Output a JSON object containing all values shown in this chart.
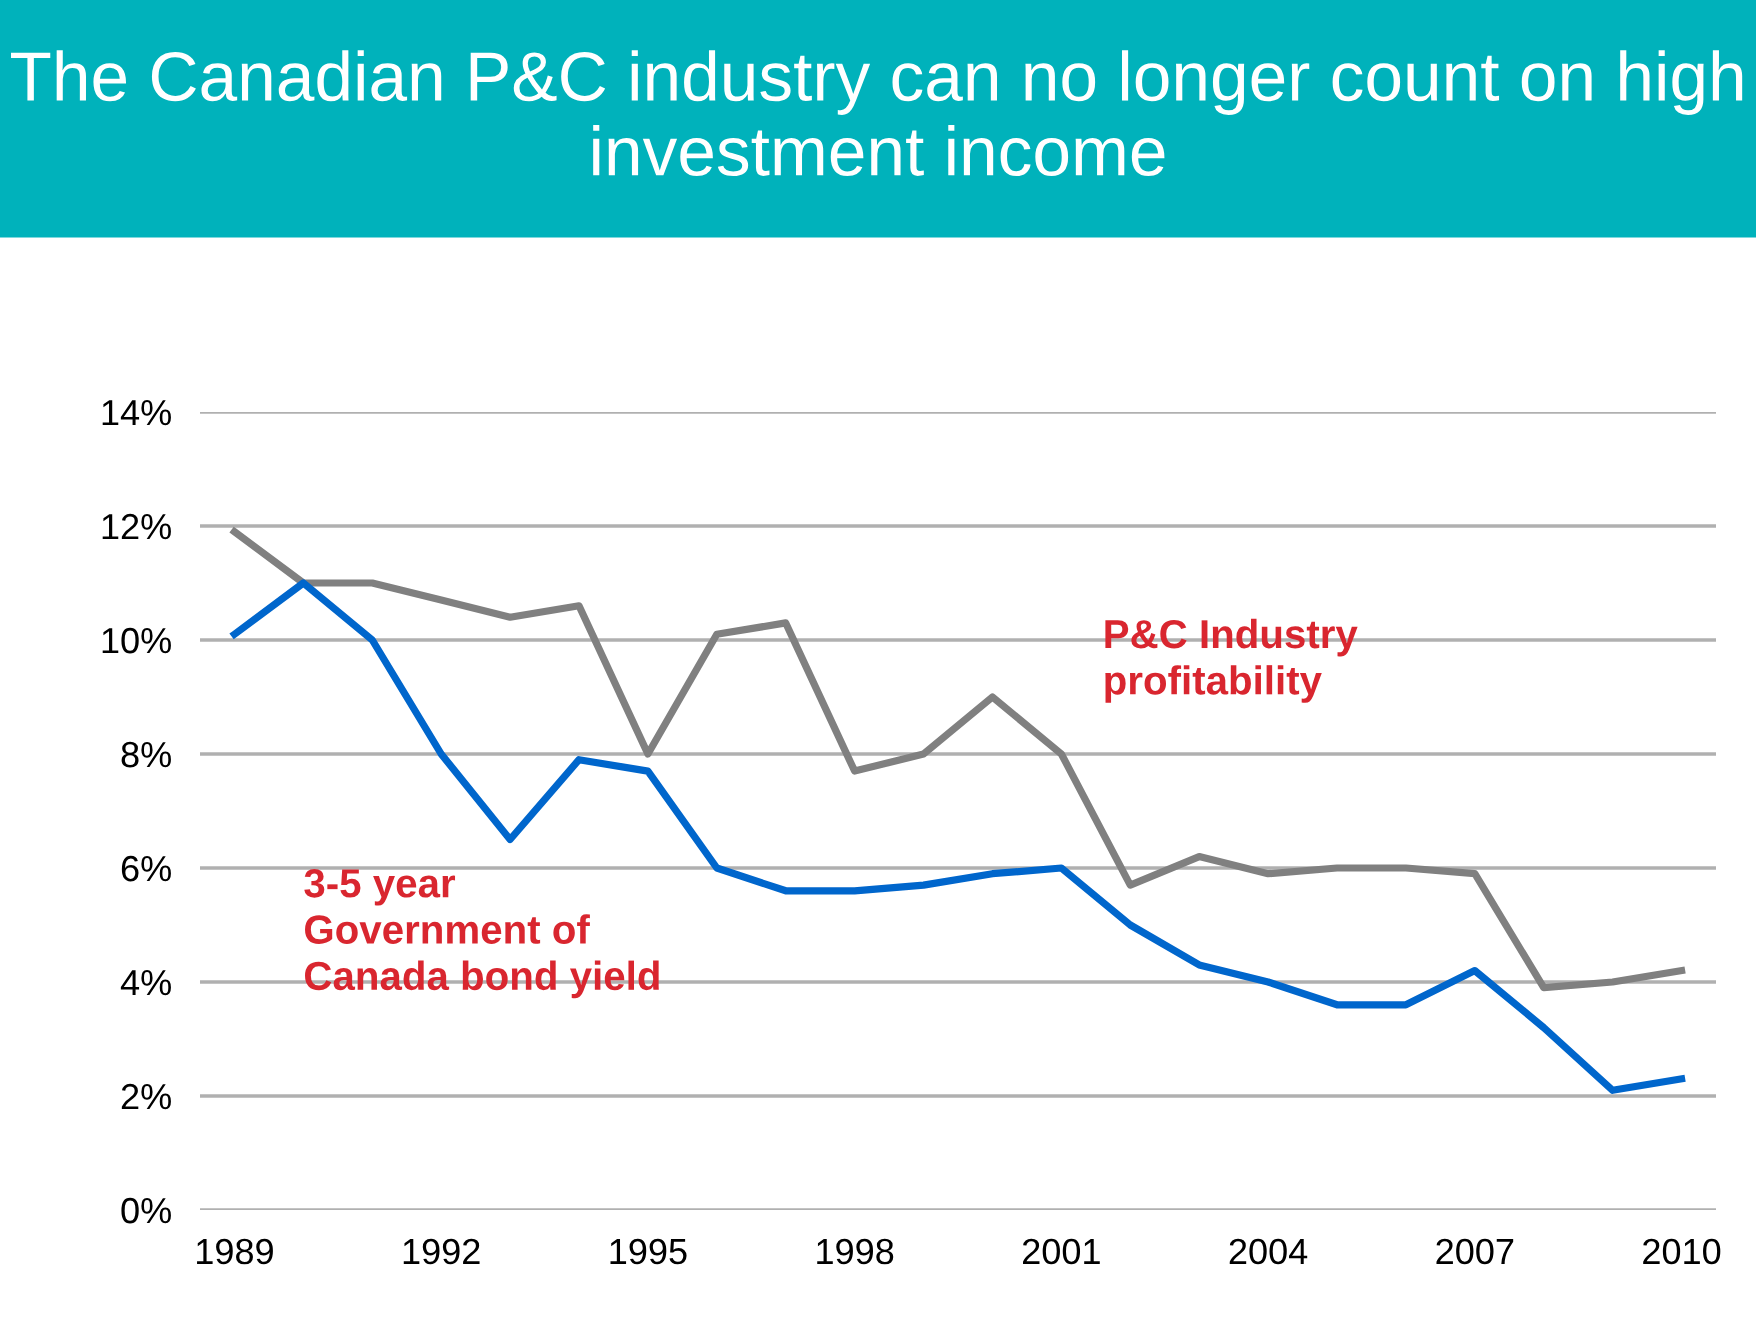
{
  "chart_data": {
    "type": "line",
    "title": "The Canadian P&C industry can no longer count on high investment income",
    "x": [
      1989,
      1990,
      1991,
      1992,
      1993,
      1994,
      1995,
      1996,
      1997,
      1998,
      1999,
      2000,
      2001,
      2002,
      2003,
      2004,
      2005,
      2006,
      2007,
      2008,
      2009,
      2010
    ],
    "series": [
      {
        "name": "P&C Industry\nprofitability",
        "color": "#808080",
        "values": [
          11.9,
          11.0,
          11.0,
          10.7,
          10.4,
          10.6,
          8.0,
          10.1,
          10.3,
          7.7,
          8.0,
          9.0,
          8.0,
          5.7,
          6.2,
          5.9,
          6.0,
          6.0,
          5.9,
          3.9,
          4.0,
          4.2
        ]
      },
      {
        "name": "3-5 year\nGovernment of\nCanada bond yield",
        "color": "#0066cc",
        "values": [
          10.1,
          11.0,
          10.0,
          8.0,
          6.5,
          7.9,
          7.7,
          6.0,
          5.6,
          5.6,
          5.7,
          5.9,
          6.0,
          5.0,
          4.3,
          4.0,
          3.6,
          3.6,
          4.2,
          3.2,
          2.1,
          2.3
        ]
      }
    ],
    "xlim": [
      1988.5,
      2010.5
    ],
    "xticks": [
      1989,
      1992,
      1995,
      1998,
      2001,
      2004,
      2007,
      2010
    ],
    "ylim": [
      0,
      14
    ],
    "yticks": [
      {
        "value": 0,
        "label": "0%"
      },
      {
        "value": 2,
        "label": "2%"
      },
      {
        "value": 4,
        "label": "4%"
      },
      {
        "value": 6,
        "label": "6%"
      },
      {
        "value": 8,
        "label": "8%"
      },
      {
        "value": 10,
        "label": "10%"
      },
      {
        "value": 12,
        "label": "12%"
      },
      {
        "value": 14,
        "label": "14%"
      }
    ],
    "grid": "y",
    "legend": false,
    "marker": "none",
    "line_style": "solid"
  }
}
